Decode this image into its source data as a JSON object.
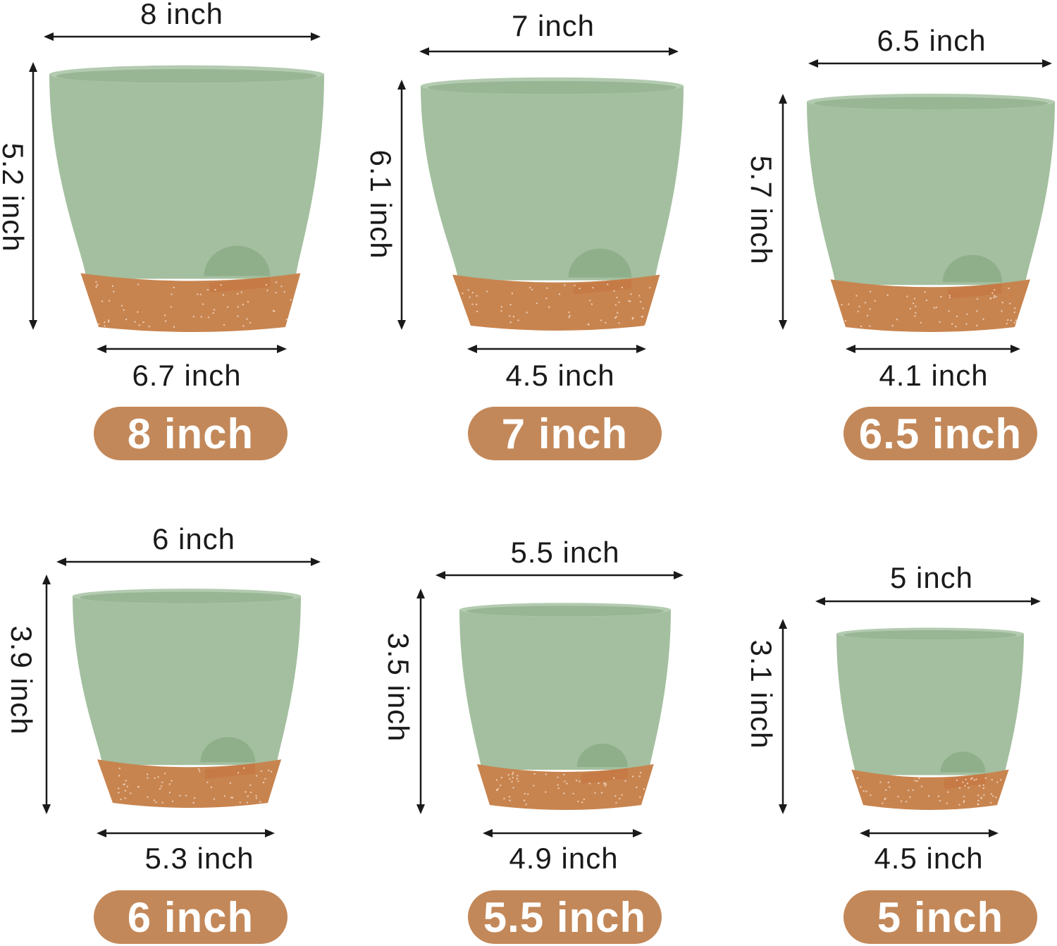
{
  "colors": {
    "pot_green": "#a3bf9f",
    "saucer_terracotta": "#c8844f",
    "pill": "#c38859",
    "arrow": "#1a1a1a"
  },
  "pots": [
    {
      "size_label": "8 inch",
      "top_diameter": "8 inch",
      "height": "5.2 inch",
      "bottom_diameter": "6.7 inch"
    },
    {
      "size_label": "7 inch",
      "top_diameter": "7 inch",
      "height": "6.1 inch",
      "bottom_diameter": "4.5 inch"
    },
    {
      "size_label": "6.5 inch",
      "top_diameter": "6.5 inch",
      "height": "5.7 inch",
      "bottom_diameter": "4.1 inch"
    },
    {
      "size_label": "6 inch",
      "top_diameter": "6 inch",
      "height": "3.9 inch",
      "bottom_diameter": "5.3 inch"
    },
    {
      "size_label": "5.5 inch",
      "top_diameter": "5.5 inch",
      "height": "3.5 inch",
      "bottom_diameter": "4.9 inch"
    },
    {
      "size_label": "5 inch",
      "top_diameter": "5 inch",
      "height": "3.1 inch",
      "bottom_diameter": "4.5 inch"
    }
  ]
}
